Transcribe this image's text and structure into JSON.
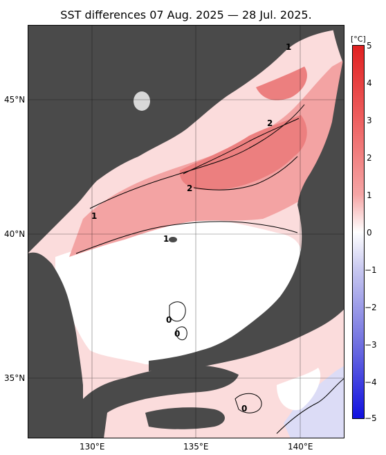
{
  "title": "SST differences 07 Aug. 2025 — 28 Jul. 2025.",
  "lat_labels": [
    "45°N",
    "40°N",
    "35°N"
  ],
  "lon_labels": [
    "130°E",
    "135°E",
    "140°E"
  ],
  "colorbar": {
    "unit": "[°C]",
    "ticks": [
      "5",
      "4",
      "3",
      "2",
      "1",
      "0",
      "−1",
      "−2",
      "−3",
      "−4",
      "−5"
    ]
  },
  "contour_labels": [
    "1",
    "2",
    "2",
    "1",
    "1",
    "0",
    "0",
    "0"
  ],
  "colors": {
    "land": "#4a4a4a",
    "warm_light": "#fbdcdc",
    "warm_mid": "#f3a3a3",
    "warm_strong": "#ec7f7f",
    "cool_light": "#dcdcf6",
    "neutral": "#ffffff"
  }
}
